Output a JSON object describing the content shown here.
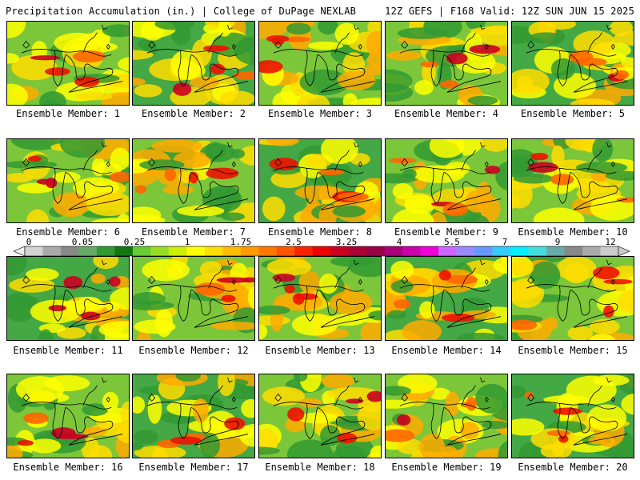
{
  "header": {
    "title": "Precipitation Accumulation (in.) | College of DuPage NEXLAB",
    "run_info": "12Z GEFS | F168 Valid: 12Z SUN JUN 15 2025"
  },
  "colorbar": {
    "tick_labels": [
      "0",
      "0.05",
      "0.25",
      "1",
      "1.75",
      "2.5",
      "3.25",
      "4",
      "5.5",
      "7",
      "9",
      "12"
    ],
    "colors": [
      "#d3d3d3",
      "#aaaaaa",
      "#888888",
      "#66aa66",
      "#339933",
      "#117711",
      "#66cc33",
      "#99dd22",
      "#ccee00",
      "#ffff00",
      "#ffdd00",
      "#ffbb00",
      "#ff9900",
      "#ff7700",
      "#ff5500",
      "#ff2200",
      "#ee0000",
      "#cc0022",
      "#aa0033",
      "#990044",
      "#aa0077",
      "#cc00aa",
      "#ee00dd",
      "#cc66ff",
      "#9988ff",
      "#6699ff",
      "#33ccff",
      "#00eeff",
      "#44dddd",
      "#66aaaa",
      "#888888",
      "#aaaaaa",
      "#cccccc"
    ]
  },
  "members": [
    {
      "label": "Ensemble Member: 1"
    },
    {
      "label": "Ensemble Member: 2"
    },
    {
      "label": "Ensemble Member: 3"
    },
    {
      "label": "Ensemble Member: 4"
    },
    {
      "label": "Ensemble Member: 5"
    },
    {
      "label": "Ensemble Member: 6"
    },
    {
      "label": "Ensemble Member: 7"
    },
    {
      "label": "Ensemble Member: 8"
    },
    {
      "label": "Ensemble Member: 9"
    },
    {
      "label": "Ensemble Member: 10"
    },
    {
      "label": "Ensemble Member: 11"
    },
    {
      "label": "Ensemble Member: 12"
    },
    {
      "label": "Ensemble Member: 13"
    },
    {
      "label": "Ensemble Member: 14"
    },
    {
      "label": "Ensemble Member: 15"
    },
    {
      "label": "Ensemble Member: 16"
    },
    {
      "label": "Ensemble Member: 17"
    },
    {
      "label": "Ensemble Member: 18"
    },
    {
      "label": "Ensemble Member: 19"
    },
    {
      "label": "Ensemble Member: 20"
    }
  ]
}
